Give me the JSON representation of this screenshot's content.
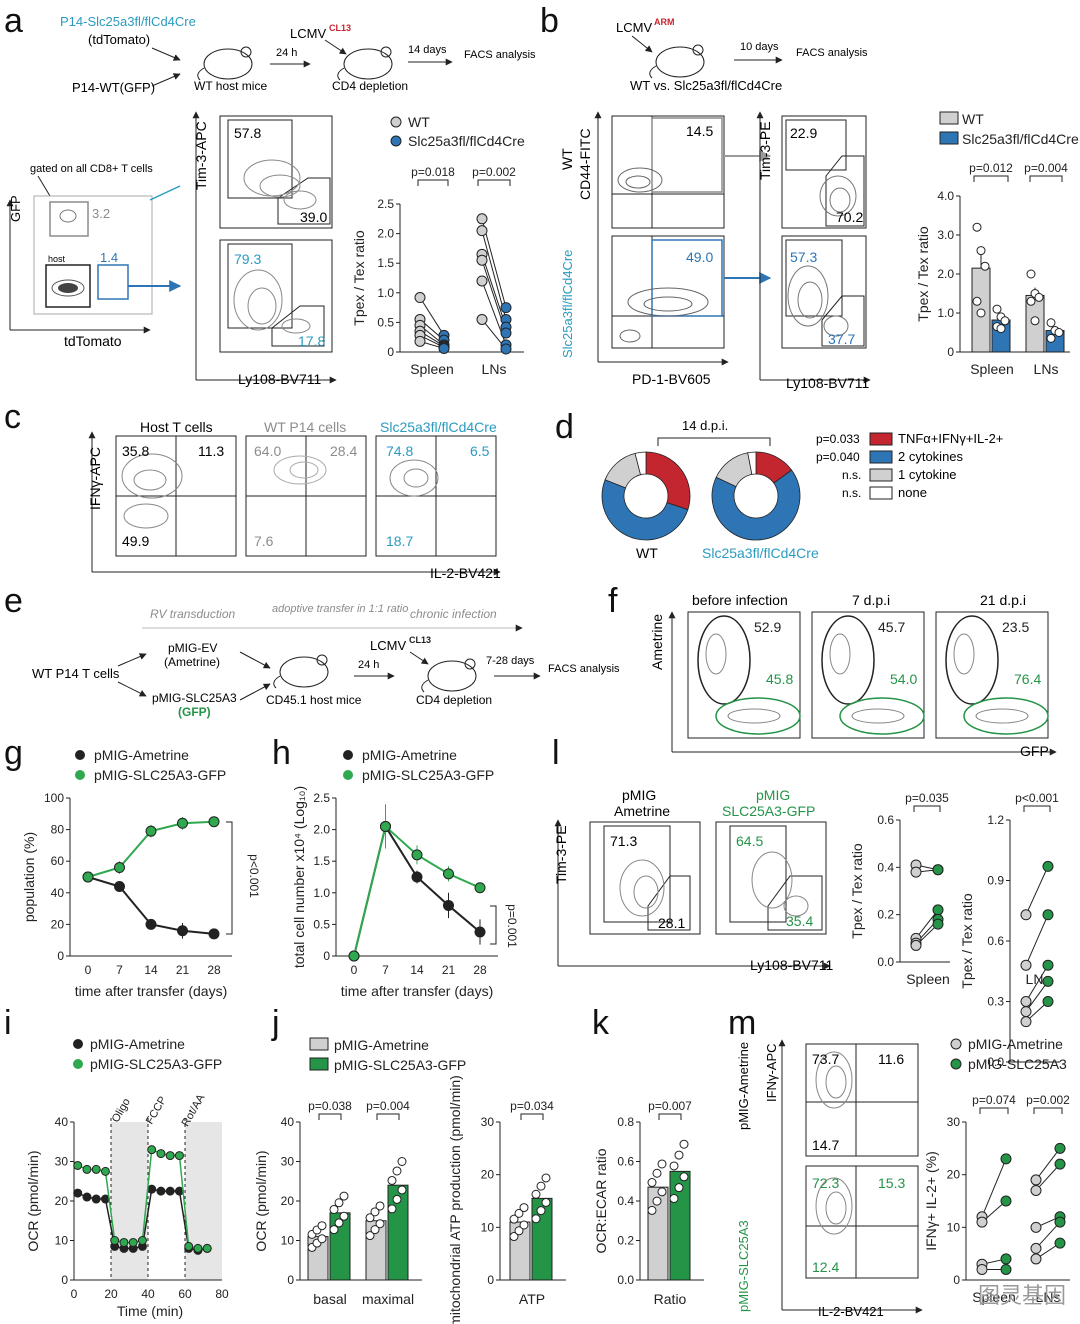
{
  "colors": {
    "teal": "#2a9bbf",
    "blue": "#2e75b6",
    "green": "#249447",
    "dark": "#222222",
    "grey": "#8c8c8c",
    "red": "#c3262e",
    "lightgrey": "#d0d0d0",
    "shade": "#e6e6e6"
  },
  "panels": {
    "a": {
      "letter": "a",
      "donor1": "P14-Slc25a3fl/flCd4Cre",
      "donor1_sub": "(tdTomato)",
      "donor2": "P14-WT(GFP)",
      "host": "WT host mice",
      "arrow1": "24 h",
      "infection": "LCMV",
      "infection_sup": "CL13",
      "step2": "CD4 depletion",
      "arrow2": "14 days",
      "facs": "FACS analysis",
      "gate_label": "gated on all CD8+ T cells",
      "host_label": "host",
      "yaxis_gfp": "GFP",
      "xaxis_td": "tdTomato",
      "pct_gfp": "3.2",
      "pct_td": "1.4",
      "tim3_axis": "Tim-3-APC",
      "ly108_axis": "Ly108-BV711",
      "top_tim3": "57.8",
      "top_ly108": "39.0",
      "bot_tim3": "79.3",
      "bot_ly108": "17.8",
      "chart_data": {
        "type": "scatter",
        "ylabel": "Tpex / Tex ratio",
        "ylim": [
          0,
          2.5
        ],
        "yticks": [
          "0",
          "0.5",
          "1.0",
          "1.5",
          "2.0",
          "2.5"
        ],
        "categories": [
          "Spleen",
          "LNs"
        ],
        "legend": [
          "WT",
          "Slc25a3fl/flCd4Cre"
        ],
        "pvalues": [
          "p=0.018",
          "p=0.002"
        ],
        "series": [
          {
            "name": "WT",
            "Spleen": [
              0.92,
              0.55,
              0.45,
              0.35,
              0.28,
              0.18
            ],
            "LNs": [
              2.25,
              2.05,
              1.65,
              1.55,
              1.2,
              0.55
            ]
          },
          {
            "name": "Slc25a3fl/flCd4Cre",
            "Spleen": [
              0.28,
              0.2,
              0.12,
              0.1,
              0.08,
              0.06
            ],
            "LNs": [
              0.75,
              0.55,
              0.42,
              0.32,
              0.12,
              0.05
            ]
          }
        ]
      }
    },
    "b": {
      "letter": "b",
      "infection": "LCMV",
      "infection_sup": "ARM",
      "arrow": "10 days",
      "facs": "FACS analysis",
      "compare": "WT vs. Slc25a3fl/flCd4Cre",
      "row1": "WT",
      "row2": "Slc25a3fl/flCd4Cre",
      "cd44_axis": "CD44-FITC",
      "pd1_axis": "PD-1-BV605",
      "tim3_axis": "Tim-3-PE",
      "ly108_axis": "Ly108-BV711",
      "wt_pd1": "14.5",
      "ko_pd1": "49.0",
      "wt_tim3": "22.9",
      "wt_ly108": "70.2",
      "ko_tim3": "57.3",
      "ko_ly108": "37.7",
      "chart_data": {
        "type": "bar",
        "ylabel": "Tpex / Tex ratio",
        "ylim": [
          0,
          4.0
        ],
        "yticks": [
          "0",
          "1.0",
          "2.0",
          "3.0",
          "4.0"
        ],
        "categories": [
          "Spleen",
          "LNs"
        ],
        "legend": [
          "WT",
          "Slc25a3fl/flCd4Cre"
        ],
        "pvalues": [
          "p=0.012",
          "p=0.004"
        ],
        "series": [
          {
            "name": "WT",
            "values": [
              2.15,
              1.45
            ],
            "sem": [
              0.35,
              0.2
            ],
            "points": {
              "Spleen": [
                3.2,
                2.6,
                2.2,
                1.3,
                1.0
              ],
              "LNs": [
                2.0,
                1.5,
                1.4,
                1.3,
                0.8
              ]
            }
          },
          {
            "name": "Slc25a3fl/flCd4Cre",
            "values": [
              0.82,
              0.55
            ],
            "sem": [
              0.12,
              0.08
            ],
            "points": {
              "Spleen": [
                1.1,
                0.9,
                0.8,
                0.65,
                0.6
              ],
              "LNs": [
                0.75,
                0.55,
                0.5,
                0.35
              ]
            }
          }
        ]
      }
    },
    "c": {
      "letter": "c",
      "titles": [
        "Host T cells",
        "WT P14 cells",
        "Slc25a3fl/flCd4Cre"
      ],
      "yaxis": "IFNγ-APC",
      "xaxis": "IL-2-BV421",
      "host": [
        "35.8",
        "11.3",
        "49.9"
      ],
      "wt": [
        "64.0",
        "28.4",
        "7.6"
      ],
      "ko": [
        "74.8",
        "6.5",
        "18.7"
      ]
    },
    "d": {
      "letter": "d",
      "timepoint": "14 d.p.i.",
      "labels": [
        "WT",
        "Slc25a3fl/flCd4Cre"
      ],
      "legend": [
        {
          "p": "p=0.033",
          "label": "TNFα+IFNγ+IL-2+"
        },
        {
          "p": "p=0.040",
          "label": "2 cytokines"
        },
        {
          "p": "n.s.",
          "label": "1 cytokine"
        },
        {
          "p": "n.s.",
          "label": "none"
        }
      ],
      "chart_data": [
        {
          "type": "pie",
          "title": "WT",
          "categories": [
            "TNFα+IFNγ+IL-2+",
            "2 cytokines",
            "1 cytokine",
            "none"
          ],
          "values": [
            30,
            51,
            15,
            4
          ]
        },
        {
          "type": "pie",
          "title": "Slc25a3fl/flCd4Cre",
          "categories": [
            "TNFα+IFNγ+IL-2+",
            "2 cytokines",
            "1 cytokine",
            "none"
          ],
          "values": [
            15,
            67,
            15,
            3
          ]
        }
      ]
    },
    "e": {
      "letter": "e",
      "steps": [
        "RV transduction",
        "adoptive transfer in 1:1 ratio",
        "chronic infection"
      ],
      "source": "WT P14 T cells",
      "ev": "pMIG-EV",
      "ev_sub": "(Ametrine)",
      "slc": "pMIG-SLC25A3",
      "slc_sub": "(GFP)",
      "host": "CD45.1 host mice",
      "arrow1": "24 h",
      "infection": "LCMV",
      "infection_sup": "CL13",
      "step2": "CD4 depletion",
      "arrow2": "7-28 days",
      "facs": "FACS analysis"
    },
    "f": {
      "letter": "f",
      "titles": [
        "before infection",
        "7 d.p.i",
        "21 d.p.i"
      ],
      "yaxis": "Ametrine",
      "xaxis": "GFP",
      "amet": [
        "52.9",
        "45.7",
        "23.5"
      ],
      "gfp": [
        "45.8",
        "54.0",
        "76.4"
      ]
    },
    "g": {
      "letter": "g",
      "chart_data": {
        "type": "line",
        "xlabel": "time after transfer (days)",
        "ylabel": "population (%)",
        "x": [
          0,
          7,
          14,
          21,
          28
        ],
        "ylim": [
          0,
          100
        ],
        "yticks": [
          "0",
          "20",
          "40",
          "60",
          "80",
          "100"
        ],
        "pvalue": "p<0.001",
        "series": [
          {
            "name": "pMIG-Ametrine",
            "values": [
              50,
              44,
              20,
              16,
              14
            ],
            "sem": [
              0,
              3,
              3,
              5,
              3
            ]
          },
          {
            "name": "pMIG-SLC25A3-GFP",
            "values": [
              50,
              56,
              79,
              84,
              85
            ],
            "sem": [
              0,
              4,
              4,
              4,
              3
            ]
          }
        ]
      }
    },
    "h": {
      "letter": "h",
      "chart_data": {
        "type": "line",
        "xlabel": "time after transfer (days)",
        "ylabel": "total cell number x10⁴ (Log₁₀)",
        "x": [
          0,
          7,
          14,
          21,
          28
        ],
        "ylim": [
          0,
          2.5
        ],
        "yticks": [
          "0",
          "0.5",
          "1.0",
          "1.5",
          "2.0",
          "2.5"
        ],
        "pvalue": "p=0.001",
        "series": [
          {
            "name": "pMIG-Ametrine",
            "values": [
              0,
              2.05,
              1.25,
              0.8,
              0.38
            ],
            "sem": [
              0,
              0.3,
              0.1,
              0.2,
              0.2
            ]
          },
          {
            "name": "pMIG-SLC25A3-GFP",
            "values": [
              0,
              2.05,
              1.6,
              1.3,
              1.08
            ],
            "sem": [
              0,
              0.35,
              0.15,
              0.12,
              0.08
            ]
          }
        ]
      }
    },
    "l": {
      "letter": "l",
      "col1": [
        "pMIG",
        "Ametrine"
      ],
      "col2": [
        "pMIG",
        "SLC25A3-GFP"
      ],
      "yaxis": "Tim-3-PE",
      "xaxis": "Ly108-BV711",
      "amet": [
        "71.3",
        "28.1"
      ],
      "slc": [
        "64.5",
        "35.4"
      ],
      "chart_data": [
        {
          "type": "scatter",
          "ylabel": "Tpex / Tex ratio",
          "ylim": [
            0,
            0.6
          ],
          "yticks": [
            "0.0",
            "0.2",
            "0.4",
            "0.6"
          ],
          "category": "Spleen",
          "pvalue": "p=0.035",
          "series": [
            {
              "name": "pMIG-Ametrine",
              "values": [
                0.41,
                0.38,
                0.1,
                0.08,
                0.07
              ]
            },
            {
              "name": "pMIG-SLC25A3",
              "values": [
                0.39,
                0.39,
                0.22,
                0.18,
                0.16
              ]
            }
          ]
        },
        {
          "type": "scatter",
          "ylabel": "Tpex / Tex ratio",
          "ylim": [
            0,
            1.2
          ],
          "yticks": [
            "0.0",
            "0.3",
            "0.6",
            "0.9",
            "1.2"
          ],
          "category": "LNs",
          "pvalue": "p<0.001",
          "series": [
            {
              "name": "pMIG-Ametrine",
              "values": [
                0.73,
                0.48,
                0.3,
                0.25,
                0.2
              ]
            },
            {
              "name": "pMIG-SLC25A3",
              "values": [
                0.97,
                0.73,
                0.48,
                0.4,
                0.3
              ]
            }
          ]
        }
      ]
    },
    "i": {
      "letter": "i",
      "legend": [
        "pMIG-Ametrine",
        "pMIG-SLC25A3-GFP"
      ],
      "injections": [
        "Oligo",
        "FCCP",
        "Rot/AA"
      ],
      "chart_data": {
        "type": "line",
        "xlabel": "Time (min)",
        "ylabel": "OCR (pmol/min)",
        "xlim": [
          0,
          80
        ],
        "ylim": [
          0,
          40
        ],
        "xticks": [
          "0",
          "20",
          "40",
          "60",
          "80"
        ],
        "yticks": [
          "0",
          "10",
          "20",
          "30",
          "40"
        ],
        "x": [
          2,
          7,
          12,
          17,
          22,
          27,
          32,
          37,
          42,
          47,
          52,
          57,
          62,
          67,
          72
        ],
        "series": [
          {
            "name": "pMIG-Ametrine",
            "values": [
              22,
              21,
              20.5,
              20.5,
              8.5,
              8,
              8,
              8.5,
              23,
              22.5,
              22.5,
              22.5,
              8,
              7.5,
              8
            ]
          },
          {
            "name": "pMIG-SLC25A3-GFP",
            "values": [
              29,
              28,
              28,
              27.5,
              10,
              9.5,
              9.5,
              10,
              33,
              32,
              31.5,
              31.5,
              8.5,
              8,
              8
            ]
          }
        ]
      }
    },
    "j": {
      "letter": "j",
      "legend": [
        "pMIG-Ametrine",
        "pMIG-SLC25A3-GFP"
      ],
      "chart_data": [
        {
          "type": "bar",
          "ylabel": "OCR (pmol/min)",
          "ylim": [
            0,
            40
          ],
          "yticks": [
            "0",
            "10",
            "20",
            "30",
            "40"
          ],
          "categories": [
            "basal",
            "maximal"
          ],
          "pvalues": [
            "p=0.038",
            "p=0.004"
          ],
          "series": [
            {
              "name": "pMIG-Ametrine",
              "values": [
                11,
                15
              ]
            },
            {
              "name": "pMIG-SLC25A3-GFP",
              "values": [
                17,
                24
              ]
            }
          ]
        },
        {
          "type": "bar",
          "ylabel": "mitochondrial ATP production (pmol/min)",
          "ylim": [
            0,
            30
          ],
          "yticks": [
            "0",
            "10",
            "20",
            "30"
          ],
          "categories": [
            "ATP"
          ],
          "pvalues": [
            "p=0.034"
          ],
          "series": [
            {
              "name": "pMIG-Ametrine",
              "values": [
                11
              ]
            },
            {
              "name": "pMIG-SLC25A3-GFP",
              "values": [
                15.5
              ]
            }
          ]
        }
      ]
    },
    "k": {
      "letter": "k",
      "chart_data": {
        "type": "bar",
        "ylabel": "OCR:ECAR ratio",
        "ylim": [
          0,
          0.8
        ],
        "yticks": [
          "0.0",
          "0.2",
          "0.4",
          "0.6",
          "0.8"
        ],
        "categories": [
          "Ratio"
        ],
        "pvalue": "p=0.007",
        "series": [
          {
            "name": "pMIG-Ametrine",
            "values": [
              0.47
            ]
          },
          {
            "name": "pMIG-SLC25A3-GFP",
            "values": [
              0.55
            ]
          }
        ]
      }
    },
    "m": {
      "letter": "m",
      "row1": "pMIG-Ametrine",
      "row2": "pMIG-SLC25A3",
      "yaxis": "IFNγ-APC",
      "xaxis": "IL-2-BV421",
      "amet": [
        "73.7",
        "11.6",
        "14.7"
      ],
      "slc": [
        "72.3",
        "15.3",
        "12.4"
      ],
      "legend": [
        "pMIG-Ametrine",
        "pMIG-SLC25A3"
      ],
      "chart_data": {
        "type": "scatter",
        "ylabel": "IFNγ+ IL-2+ (%)",
        "ylim": [
          0,
          30
        ],
        "yticks": [
          "0",
          "10",
          "20",
          "30"
        ],
        "categories": [
          "Spleen",
          "LNs"
        ],
        "pvalues": [
          "p=0.074",
          "p=0.002"
        ],
        "series": [
          {
            "name": "pMIG-Ametrine",
            "Spleen": [
              12,
              11,
              3,
              2
            ],
            "LNs": [
              19,
              17,
              10,
              6,
              4
            ]
          },
          {
            "name": "pMIG-SLC25A3",
            "Spleen": [
              23,
              15,
              4,
              2
            ],
            "LNs": [
              25,
              22,
              12,
              11,
              7
            ]
          }
        ]
      }
    },
    "watermark": "图灵基因"
  }
}
